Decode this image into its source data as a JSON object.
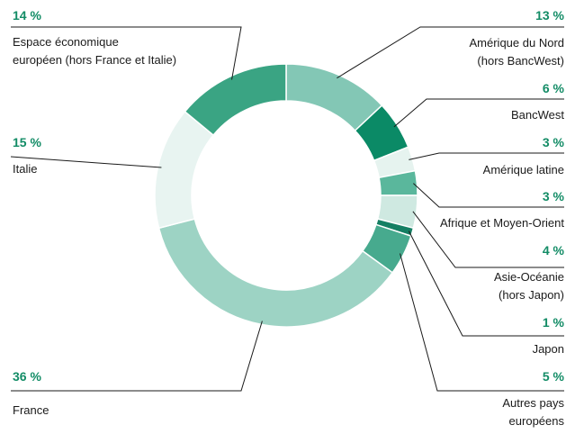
{
  "chart_data": {
    "type": "pie",
    "subtype": "donut",
    "title": "",
    "colors": {
      "percent_text": "#138c66",
      "leader_line": "#1a1a1a",
      "label_text": "#1a1a1a"
    },
    "slices": [
      {
        "key": "amerique-nord",
        "label_lines": [
          "Amérique du Nord",
          "(hors BancWest)"
        ],
        "value": 13,
        "pct_label": "13 %",
        "color": "#83c7b5",
        "side": "right"
      },
      {
        "key": "bancwest",
        "label_lines": [
          "BancWest"
        ],
        "value": 6,
        "pct_label": "6 %",
        "color": "#0b8a66",
        "side": "right"
      },
      {
        "key": "amerique-latine",
        "label_lines": [
          "Amérique latine"
        ],
        "value": 3,
        "pct_label": "3 %",
        "color": "#e6f3ef",
        "side": "right"
      },
      {
        "key": "afrique",
        "label_lines": [
          "Afrique et Moyen-Orient"
        ],
        "value": 3,
        "pct_label": "3 %",
        "color": "#5ab79c",
        "side": "right"
      },
      {
        "key": "asie",
        "label_lines": [
          "Asie-Océanie",
          "(hors Japon)"
        ],
        "value": 4,
        "pct_label": "4 %",
        "color": "#cfe9e1",
        "side": "right"
      },
      {
        "key": "japon",
        "label_lines": [
          "Japon"
        ],
        "value": 1,
        "pct_label": "1 %",
        "color": "#157f63",
        "side": "right"
      },
      {
        "key": "autres-europe",
        "label_lines": [
          "Autres pays",
          "européens"
        ],
        "value": 5,
        "pct_label": "5 %",
        "color": "#47aa8e",
        "side": "right"
      },
      {
        "key": "france",
        "label_lines": [
          "France"
        ],
        "value": 36,
        "pct_label": "36 %",
        "color": "#9dd3c4",
        "side": "left"
      },
      {
        "key": "italie",
        "label_lines": [
          "Italie"
        ],
        "value": 15,
        "pct_label": "15 %",
        "color": "#e8f4f1",
        "side": "left"
      },
      {
        "key": "eee",
        "label_lines": [
          "Espace économique",
          "européen (hors France et Italie)"
        ],
        "value": 14,
        "pct_label": "14 %",
        "color": "#3aa483",
        "side": "left"
      }
    ]
  }
}
